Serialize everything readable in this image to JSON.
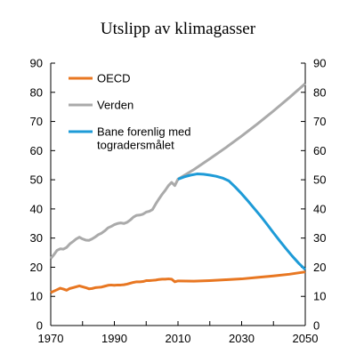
{
  "chart_data": {
    "type": "line",
    "title": "Utslipp av klimagasser",
    "xlabel": "",
    "ylabel": "",
    "xlim": [
      1970,
      2050
    ],
    "ylim": [
      0,
      90
    ],
    "x_ticks": [
      1970,
      1990,
      2010,
      2030,
      2050
    ],
    "y_ticks": [
      0,
      10,
      20,
      30,
      40,
      50,
      60,
      70,
      80,
      90
    ],
    "legend_position": "top-left",
    "grid": false,
    "series": [
      {
        "name": "OECD",
        "color": "#E87722",
        "x": [
          1970,
          1971,
          1972,
          1973,
          1974,
          1975,
          1976,
          1977,
          1978,
          1979,
          1980,
          1981,
          1982,
          1983,
          1984,
          1985,
          1986,
          1987,
          1988,
          1989,
          1990,
          1991,
          1992,
          1993,
          1994,
          1995,
          1996,
          1997,
          1998,
          1999,
          2000,
          2001,
          2002,
          2003,
          2004,
          2005,
          2006,
          2007,
          2008,
          2009,
          2010,
          2015,
          2020,
          2025,
          2030,
          2035,
          2040,
          2045,
          2050
        ],
        "y": [
          11.3,
          11.8,
          12.3,
          12.8,
          12.5,
          12.1,
          12.7,
          13.0,
          13.3,
          13.6,
          13.3,
          13.0,
          12.6,
          12.7,
          13.0,
          13.1,
          13.2,
          13.5,
          13.8,
          13.9,
          13.8,
          13.9,
          13.9,
          14.0,
          14.2,
          14.5,
          14.8,
          15.0,
          15.0,
          15.1,
          15.4,
          15.4,
          15.5,
          15.6,
          15.8,
          15.9,
          15.9,
          16.0,
          15.9,
          15.0,
          15.3,
          15.2,
          15.4,
          15.7,
          16.0,
          16.5,
          17.0,
          17.6,
          18.4
        ]
      },
      {
        "name": "Verden",
        "color": "#AAAAAA",
        "x": [
          1970,
          1971,
          1972,
          1973,
          1974,
          1975,
          1976,
          1977,
          1978,
          1979,
          1980,
          1981,
          1982,
          1983,
          1984,
          1985,
          1986,
          1987,
          1988,
          1989,
          1990,
          1991,
          1992,
          1993,
          1994,
          1995,
          1996,
          1997,
          1998,
          1999,
          2000,
          2001,
          2002,
          2003,
          2004,
          2005,
          2006,
          2007,
          2008,
          2009,
          2010,
          2015,
          2020,
          2025,
          2030,
          2035,
          2040,
          2045,
          2050
        ],
        "y": [
          23.0,
          24.3,
          25.8,
          26.3,
          26.2,
          26.8,
          28.0,
          28.8,
          29.7,
          30.3,
          29.7,
          29.3,
          29.2,
          29.7,
          30.4,
          31.2,
          31.7,
          32.5,
          33.5,
          34.0,
          34.6,
          35.0,
          35.2,
          35.0,
          35.4,
          36.2,
          37.2,
          37.8,
          37.9,
          38.2,
          38.9,
          39.2,
          39.8,
          41.7,
          43.4,
          45.0,
          46.4,
          48.0,
          49.1,
          48.0,
          50.2,
          53.5,
          57.2,
          61.0,
          65.0,
          69.2,
          73.6,
          78.2,
          83.0
        ]
      },
      {
        "name": "Bane forenlig med togradersmålet",
        "color": "#1E9BD7",
        "x": [
          2010,
          2012,
          2014,
          2016,
          2018,
          2020,
          2022,
          2024,
          2026,
          2028,
          2030,
          2032,
          2034,
          2036,
          2038,
          2040,
          2042,
          2044,
          2046,
          2048,
          2050
        ],
        "y": [
          50.2,
          51.0,
          51.6,
          52.0,
          51.9,
          51.6,
          51.2,
          50.6,
          49.6,
          47.5,
          45.2,
          42.7,
          40.1,
          37.5,
          34.7,
          31.8,
          29.0,
          26.3,
          23.7,
          21.3,
          19.2
        ]
      }
    ]
  }
}
